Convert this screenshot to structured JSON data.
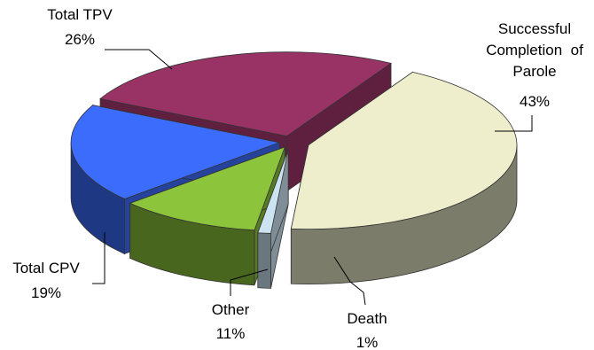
{
  "chart_data": {
    "type": "pie",
    "style": "3d-exploded",
    "slices": [
      {
        "label_lines": [
          "Successful",
          "Completion  of",
          "Parole"
        ],
        "pct_text": "43%",
        "value": 43,
        "color": "#eeeecc"
      },
      {
        "label_lines": [
          "Death"
        ],
        "pct_text": "1%",
        "value": 1,
        "color": "#cce4f2"
      },
      {
        "label_lines": [
          "Other"
        ],
        "pct_text": "11%",
        "value": 11,
        "color": "#8cc43c"
      },
      {
        "label_lines": [
          "Total CPV"
        ],
        "pct_text": "19%",
        "value": 19,
        "color": "#3c6cfc"
      },
      {
        "label_lines": [
          "Total TPV"
        ],
        "pct_text": "26%",
        "value": 26,
        "color": "#993366"
      }
    ]
  }
}
